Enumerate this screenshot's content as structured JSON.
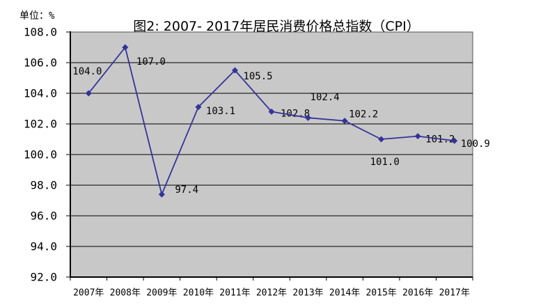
{
  "unit_label": "单位：%",
  "title": "图2: 2007- 2017年居民消费价格总指数（CPI）",
  "chart_data": {
    "type": "line",
    "title": "图2: 2007- 2017年居民消费价格总指数（CPI）",
    "unit": "单位：%",
    "categories": [
      "2007年",
      "2008年",
      "2009年",
      "2010年",
      "2011年",
      "2012年",
      "2013年",
      "2014年",
      "2015年",
      "2016年",
      "2017年"
    ],
    "series": [
      {
        "name": "居民消费价格总指数(CPI)",
        "values": [
          104.0,
          107.0,
          97.4,
          103.1,
          105.5,
          102.8,
          102.4,
          102.2,
          101.0,
          101.2,
          100.9
        ]
      }
    ],
    "point_labels": [
      "104.0",
      "107.0",
      "97.4",
      "103.1",
      "105.5",
      "102.8",
      "102.4",
      "102.2",
      "101.0",
      "101.2",
      "100.9"
    ],
    "y_ticks": [
      "108.0",
      "106.0",
      "104.0",
      "102.0",
      "100.0",
      "98.0",
      "96.0",
      "94.0",
      "92.0"
    ],
    "ylim": [
      92,
      108
    ],
    "y_step": 2,
    "xlabel": "",
    "ylabel": "",
    "grid": true,
    "legend_position": "none",
    "colors": {
      "line": "#333399",
      "marker": "#333399",
      "plot_bg": "#C8C8C8",
      "grid_line": "#000000",
      "axis_line": "#000000",
      "text": "#000000",
      "page_bg": "#FFFFFF"
    }
  }
}
